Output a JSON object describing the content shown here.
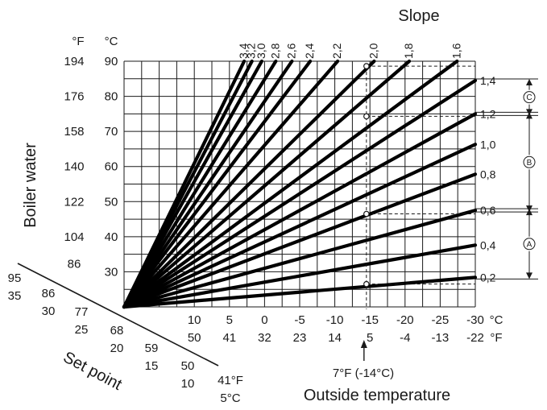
{
  "chart_data": {
    "type": "line",
    "title": "Slope",
    "ylabel": "Boiler water",
    "xlabel": "Outside temperature",
    "setpoint_label": "Set point",
    "unit_labels": {
      "y_f": "°F",
      "y_c": "°C",
      "x_c": "°C",
      "x_f": "°F",
      "sp_f": "41°F",
      "sp_c": "5°C"
    },
    "y_axis": {
      "ylim": [
        20,
        90
      ],
      "celsius_ticks": [
        "90",
        "80",
        "70",
        "60",
        "50",
        "40",
        "30"
      ],
      "fahrenheit_ticks": [
        "194",
        "176",
        "158",
        "140",
        "122",
        "104",
        "86"
      ]
    },
    "x_axis": {
      "xlim": [
        20,
        -30
      ],
      "celsius_ticks": [
        "10",
        "5",
        "0",
        "-5",
        "-10",
        "-15",
        "-20",
        "-25",
        "-30"
      ],
      "fahrenheit_ticks": [
        "50",
        "41",
        "32",
        "23",
        "14",
        "5",
        "-4",
        "-13",
        "-22"
      ]
    },
    "setpoint_axis": {
      "celsius_ticks": [
        "35",
        "30",
        "25",
        "20",
        "15",
        "10"
      ],
      "fahrenheit_ticks": [
        "95",
        "86",
        "77",
        "68",
        "59",
        "50"
      ]
    },
    "origin": {
      "outside_temp_c": 20,
      "boiler_water_c": 20
    },
    "series": [
      {
        "name": "0,2",
        "values": [
          [
            20,
            20
          ],
          [
            -30,
            28.4
          ]
        ]
      },
      {
        "name": "0,4",
        "values": [
          [
            20,
            20
          ],
          [
            -30,
            37.6
          ]
        ]
      },
      {
        "name": "0,6",
        "values": [
          [
            20,
            20
          ],
          [
            -30,
            47.5
          ]
        ]
      },
      {
        "name": "0,8",
        "values": [
          [
            20,
            20
          ],
          [
            -30,
            57.8
          ]
        ]
      },
      {
        "name": "1,0",
        "values": [
          [
            20,
            20
          ],
          [
            -30,
            66.3
          ]
        ]
      },
      {
        "name": "1,2",
        "values": [
          [
            20,
            20
          ],
          [
            -30,
            75
          ]
        ]
      },
      {
        "name": "1,4",
        "values": [
          [
            20,
            20
          ],
          [
            -30,
            84.5
          ]
        ]
      },
      {
        "name": "1,6",
        "values": [
          [
            20,
            20
          ],
          [
            -27.4,
            90
          ]
        ]
      },
      {
        "name": "1,8",
        "values": [
          [
            20,
            20
          ],
          [
            -20.6,
            90
          ]
        ]
      },
      {
        "name": "2,0",
        "values": [
          [
            20,
            20
          ],
          [
            -15.6,
            90
          ]
        ]
      },
      {
        "name": "2,2",
        "values": [
          [
            20,
            20
          ],
          [
            -10.4,
            90
          ]
        ]
      },
      {
        "name": "2,4",
        "values": [
          [
            20,
            20
          ],
          [
            -6.5,
            90
          ]
        ]
      },
      {
        "name": "2,6",
        "values": [
          [
            20,
            20
          ],
          [
            -3.9,
            90
          ]
        ]
      },
      {
        "name": "2,8",
        "values": [
          [
            20,
            20
          ],
          [
            -1.6,
            90
          ]
        ]
      },
      {
        "name": "3,0",
        "values": [
          [
            20,
            20
          ],
          [
            0.4,
            90
          ]
        ]
      },
      {
        "name": "3,2",
        "values": [
          [
            20,
            20
          ],
          [
            1.8,
            90
          ]
        ]
      },
      {
        "name": "3,4",
        "values": [
          [
            20,
            20
          ],
          [
            2.9,
            90
          ]
        ]
      }
    ],
    "marker": {
      "label": "7°F (-14°C)",
      "outside_temp_c": -14.5
    },
    "marker_points": [
      {
        "x": -14.5,
        "y": 26.5
      },
      {
        "x": -14.5,
        "y": 46.5
      },
      {
        "x": -14.5,
        "y": 74.3
      },
      {
        "x": -14.5,
        "y": 88.6
      }
    ],
    "range_brackets": [
      {
        "label": "A",
        "from": "0,2",
        "to": "0,6"
      },
      {
        "label": "B",
        "from": "0,6",
        "to": "1,2"
      },
      {
        "label": "C",
        "from": "1,2",
        "to": "1,4"
      }
    ],
    "grid": true
  }
}
